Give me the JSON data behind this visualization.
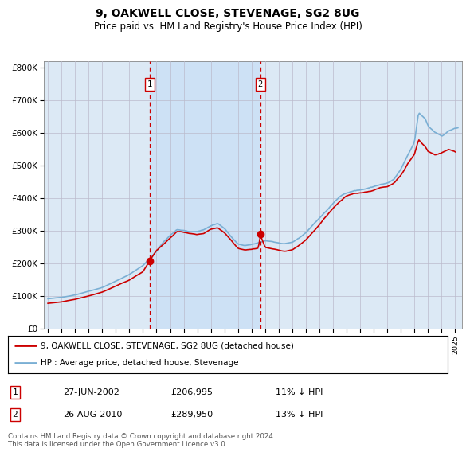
{
  "title": "9, OAKWELL CLOSE, STEVENAGE, SG2 8UG",
  "subtitle": "Price paid vs. HM Land Registry's House Price Index (HPI)",
  "background_color": "#dce9f5",
  "shade_color": "#c8dff5",
  "legend_label_red": "9, OAKWELL CLOSE, STEVENAGE, SG2 8UG (detached house)",
  "legend_label_blue": "HPI: Average price, detached house, Stevenage",
  "transaction1_date": "27-JUN-2002",
  "transaction1_price": "£206,995",
  "transaction1_note": "11% ↓ HPI",
  "transaction2_date": "26-AUG-2010",
  "transaction2_price": "£289,950",
  "transaction2_note": "13% ↓ HPI",
  "footer": "Contains HM Land Registry data © Crown copyright and database right 2024.\nThis data is licensed under the Open Government Licence v3.0.",
  "ylim": [
    0,
    820000
  ],
  "yticks": [
    0,
    100000,
    200000,
    300000,
    400000,
    500000,
    600000,
    700000,
    800000
  ],
  "ytick_labels": [
    "£0",
    "£100K",
    "£200K",
    "£300K",
    "£400K",
    "£500K",
    "£600K",
    "£700K",
    "£800K"
  ],
  "red_color": "#cc0000",
  "blue_color": "#7aafd4",
  "dashed_color": "#cc0000",
  "marker1_x": 2002.49,
  "marker1_y": 206995,
  "marker2_x": 2010.65,
  "marker2_y": 289950,
  "vline1_x": 2002.49,
  "vline2_x": 2010.65,
  "xmin": 1994.7,
  "xmax": 2025.5
}
